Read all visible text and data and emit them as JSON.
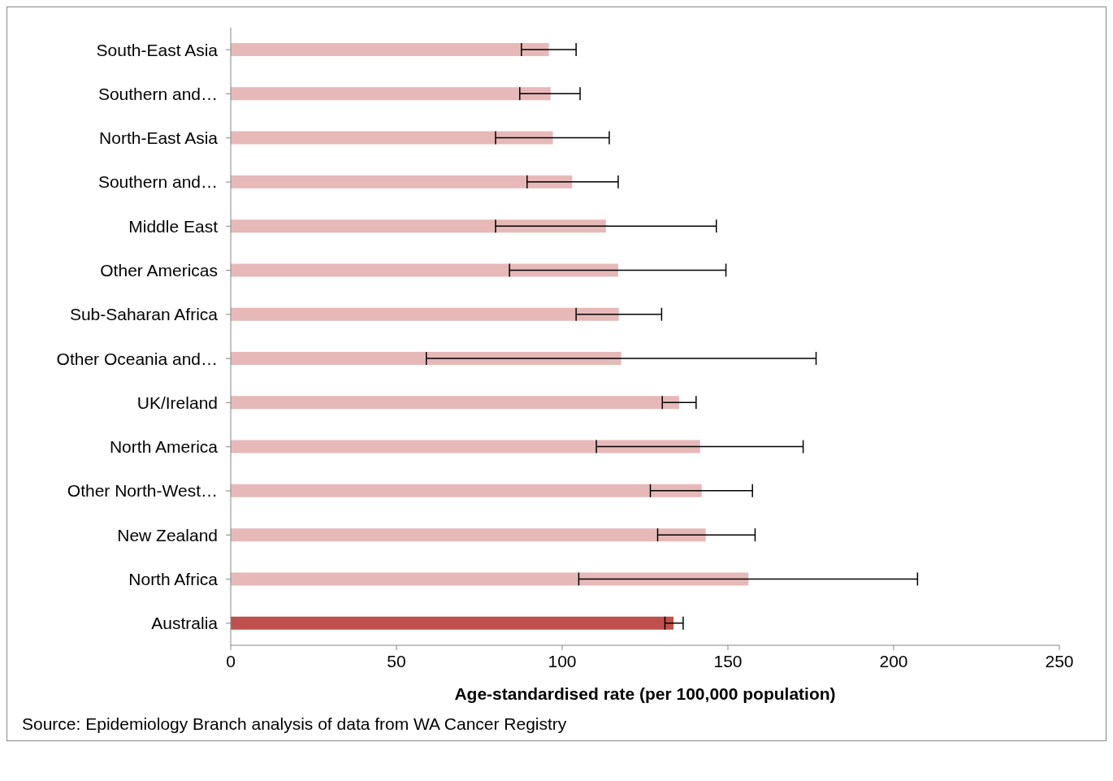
{
  "chart_data": {
    "type": "bar",
    "orientation": "horizontal",
    "xlabel": "Age-standardised rate (per 100,000 population)",
    "categories": [
      "South-East Asia",
      "Southern and…",
      "North-East Asia",
      "Southern and…",
      "Middle East",
      "Other Americas",
      "Sub-Saharan Africa",
      "Other Oceania and…",
      "UK/Ireland",
      "North America",
      "Other North-West…",
      "New Zealand",
      "North Africa",
      "Australia"
    ],
    "values": [
      96.0,
      96.5,
      97.2,
      103.0,
      113.2,
      116.9,
      117.1,
      117.8,
      135.3,
      141.6,
      142.1,
      143.3,
      156.2,
      133.6
    ],
    "errors": [
      [
        87.7,
        104.2
      ],
      [
        87.2,
        105.4
      ],
      [
        79.9,
        114.2
      ],
      [
        89.4,
        116.9
      ],
      [
        79.9,
        146.5
      ],
      [
        84.1,
        149.4
      ],
      [
        104.2,
        130.0
      ],
      [
        59.0,
        176.6
      ],
      [
        130.2,
        140.4
      ],
      [
        110.3,
        172.7
      ],
      [
        126.6,
        157.4
      ],
      [
        128.8,
        158.2
      ],
      [
        105.0,
        207.2
      ],
      [
        131.0,
        136.5
      ]
    ],
    "colors": [
      "#e6b9b8",
      "#e6b9b8",
      "#e6b9b8",
      "#e6b9b8",
      "#e6b9b8",
      "#e6b9b8",
      "#e6b9b8",
      "#e6b9b8",
      "#e6b9b8",
      "#e6b9b8",
      "#e6b9b8",
      "#e6b9b8",
      "#e6b9b8",
      "#c0504d"
    ],
    "xlim": [
      0,
      250
    ],
    "xticks": [
      0,
      50,
      100,
      150,
      200,
      250
    ],
    "annotations": [
      "Source: Epidemiology Branch analysis of data from WA Cancer Registry"
    ]
  }
}
